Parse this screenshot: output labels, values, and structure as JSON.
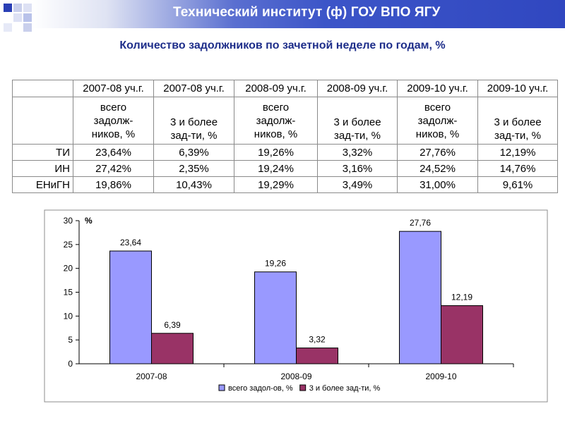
{
  "header": {
    "title": "Технический институт (ф) ГОУ ВПО ЯГУ"
  },
  "subtitle": "Количество задолжников по зачетной неделе по годам, %",
  "colors": {
    "header": "#3047c0",
    "series1": "#9999ff",
    "series2": "#993366",
    "subtitle": "#1e2e8a"
  },
  "table": {
    "years": [
      "2007-08 уч.г.",
      "2007-08 уч.г.",
      "2008-09 уч.г.",
      "2008-09 уч.г.",
      "2009-10 уч.г.",
      "2009-10 уч.г."
    ],
    "subheaders": [
      [
        "всего",
        "задолж-",
        "ников, %"
      ],
      [
        "3 и более",
        "зад-ти, %"
      ],
      [
        "всего",
        "задолж-",
        "ников, %"
      ],
      [
        "3 и более",
        "зад-ти, %"
      ],
      [
        "всего",
        "задолж-",
        "ников, %"
      ],
      [
        "3 и более",
        "зад-ти, %"
      ]
    ],
    "rows": [
      {
        "label": "ТИ",
        "values": [
          "23,64%",
          "6,39%",
          "19,26%",
          "3,32%",
          "27,76%",
          "12,19%"
        ]
      },
      {
        "label": "ИН",
        "values": [
          "27,42%",
          "2,35%",
          "19,24%",
          "3,16%",
          "24,52%",
          "14,76%"
        ]
      },
      {
        "label": "ЕНиГН",
        "values": [
          "19,86%",
          "10,43%",
          "19,29%",
          "3,49%",
          "31,00%",
          "9,61%"
        ]
      }
    ]
  },
  "chart_data": {
    "type": "bar",
    "categories": [
      "2007-08",
      "2008-09",
      "2009-10"
    ],
    "series": [
      {
        "name": "всего задол-ов, %",
        "values": [
          23.64,
          19.26,
          27.76
        ],
        "labels": [
          "23,64",
          "19,26",
          "27,76"
        ]
      },
      {
        "name": "3 и более зад-ти, %",
        "values": [
          6.39,
          3.32,
          12.19
        ],
        "labels": [
          "6,39",
          "3,32",
          "12,19"
        ]
      }
    ],
    "ylabel": "%",
    "ylim": [
      0,
      30
    ],
    "yticks": [
      "0",
      "5",
      "10",
      "15",
      "20",
      "25",
      "30"
    ],
    "legend": "bottom",
    "grid": false
  }
}
